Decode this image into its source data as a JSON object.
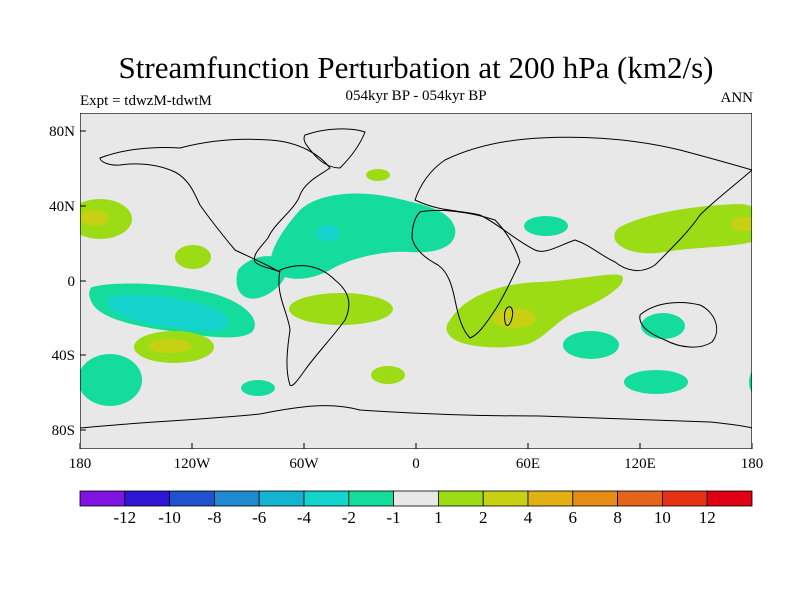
{
  "header": {
    "title": "Streamfunction Perturbation at 200 hPa (km2/s)",
    "left_string": "Expt = tdwzM-tdwtM",
    "center_string": "054kyr BP - 054kyr BP",
    "right_string": "ANN"
  },
  "map": {
    "lon_range": [
      -180,
      180
    ],
    "lat_range": [
      -90,
      90
    ],
    "background_color": "#e8e8e8",
    "lat_labels": [
      "80N",
      "40N",
      "0",
      "40S",
      "80S"
    ],
    "lon_labels": [
      "180",
      "120W",
      "60W",
      "0",
      "60E",
      "120E",
      "180"
    ]
  },
  "colorbar": {
    "colors": [
      "#7f14e0",
      "#2d16d4",
      "#1f52cc",
      "#1f8ad0",
      "#14b4d0",
      "#14d2cc",
      "#14dc9c",
      "#e8e8e8",
      "#9cdc14",
      "#c8d014",
      "#e0b014",
      "#e48c14",
      "#e4641c",
      "#e43214",
      "#e00014"
    ],
    "labels": [
      "-12",
      "-10",
      "-8",
      "-6",
      "-4",
      "-2",
      "-1",
      "1",
      "2",
      "4",
      "6",
      "8",
      "10",
      "12"
    ]
  }
}
